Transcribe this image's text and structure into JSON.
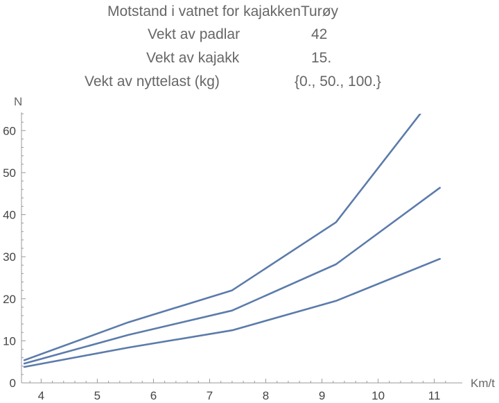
{
  "header": {
    "title": "Motstand i vatnet for kajakkenTurøy",
    "rows": [
      {
        "label": "Vekt av padlar",
        "value": "42"
      },
      {
        "label": "Vekt av kajakk",
        "value": "15."
      },
      {
        "label": "Vekt av nyttelast (kg)",
        "value": "{0., 50., 100.}"
      }
    ]
  },
  "chart_data": {
    "type": "line",
    "title": "",
    "xlabel": "Km/t",
    "ylabel": "N",
    "xlim": [
      3.65,
      11.35
    ],
    "ylim": [
      0,
      64
    ],
    "x_ticks": [
      4,
      5,
      6,
      7,
      8,
      9,
      10,
      11
    ],
    "y_ticks": [
      0,
      10,
      20,
      30,
      40,
      50,
      60
    ],
    "grid": false,
    "line_color": "#5B7BAB",
    "series": [
      {
        "x": [
          3.7,
          5.55,
          7.4,
          9.25,
          11.1
        ],
        "values": [
          3.8,
          8.4,
          12.5,
          19.5,
          29.5
        ]
      },
      {
        "x": [
          3.7,
          5.55,
          7.4,
          9.25,
          11.1
        ],
        "values": [
          4.6,
          11.4,
          17.2,
          28.2,
          46.4
        ]
      },
      {
        "x": [
          3.7,
          5.55,
          7.4,
          9.25,
          11.1
        ],
        "values": [
          5.4,
          14.4,
          22.0,
          38.2,
          70.0
        ]
      }
    ]
  }
}
